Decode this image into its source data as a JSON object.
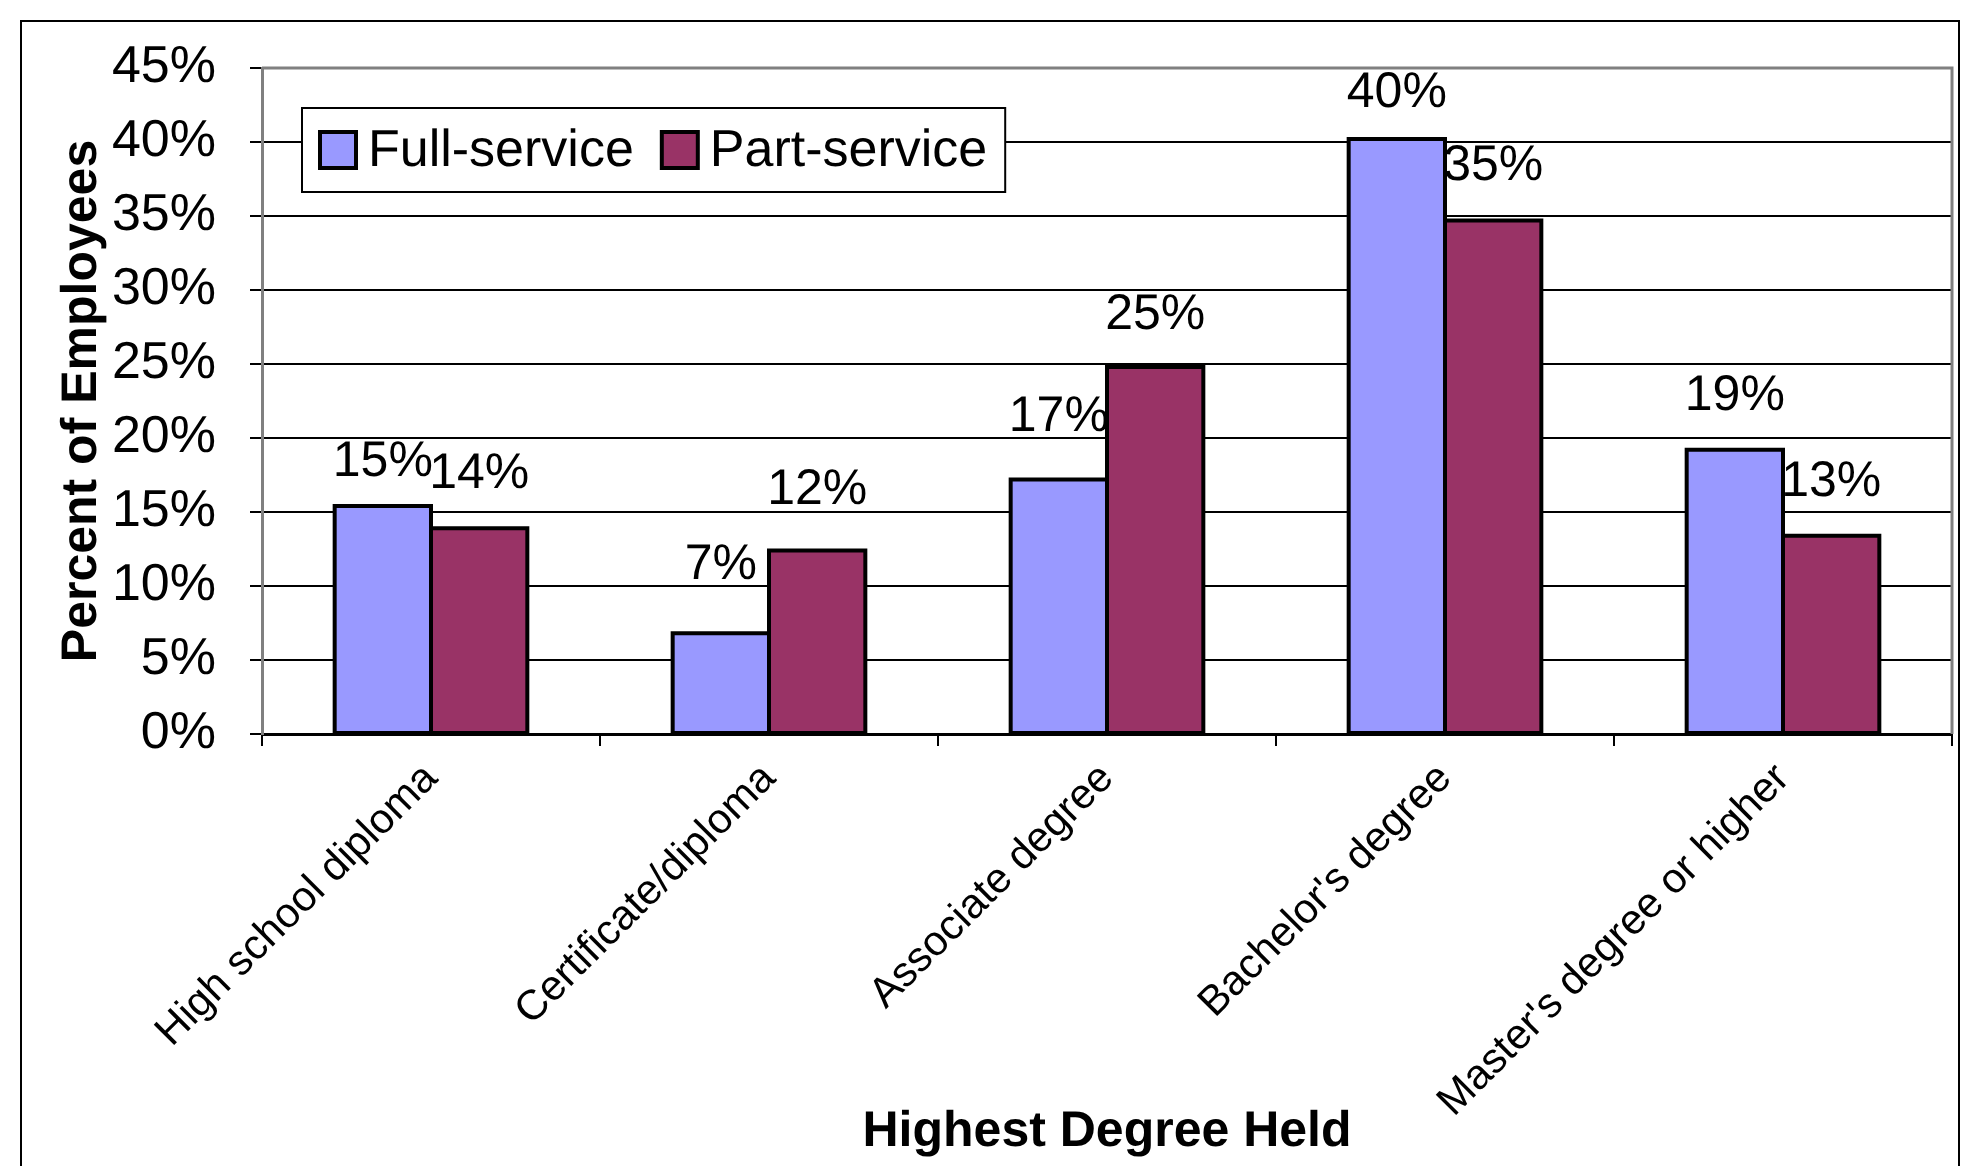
{
  "chart_data": {
    "type": "bar",
    "xlabel": "Highest Degree Held",
    "ylabel": "Percent of Employees",
    "categories": [
      "High school diploma",
      "Certificate/diploma",
      "Associate degree",
      "Bachelor's degree",
      "Master's degree or higher"
    ],
    "series": [
      {
        "name": "Full-service",
        "color": "#9999ff",
        "values": [
          15.4,
          6.8,
          17.2,
          40.2,
          19.2
        ],
        "value_labels": [
          "15%",
          "7%",
          "17%",
          "40%",
          "19%"
        ]
      },
      {
        "name": "Part-service",
        "color": "#993366",
        "values": [
          13.9,
          12.4,
          24.8,
          34.7,
          13.4
        ],
        "value_labels": [
          "14%",
          "12%",
          "25%",
          "35%",
          "13%"
        ]
      }
    ],
    "ylim": [
      0,
      45
    ],
    "yticks": [
      {
        "value": 0,
        "label": "0%"
      },
      {
        "value": 5,
        "label": "5%"
      },
      {
        "value": 10,
        "label": "10%"
      },
      {
        "value": 15,
        "label": "15%"
      },
      {
        "value": 20,
        "label": "20%"
      },
      {
        "value": 25,
        "label": "25%"
      },
      {
        "value": 30,
        "label": "30%"
      },
      {
        "value": 35,
        "label": "35%"
      },
      {
        "value": 40,
        "label": "40%"
      },
      {
        "value": 45,
        "label": "45%"
      }
    ],
    "grid": "y",
    "legend": "top left"
  }
}
